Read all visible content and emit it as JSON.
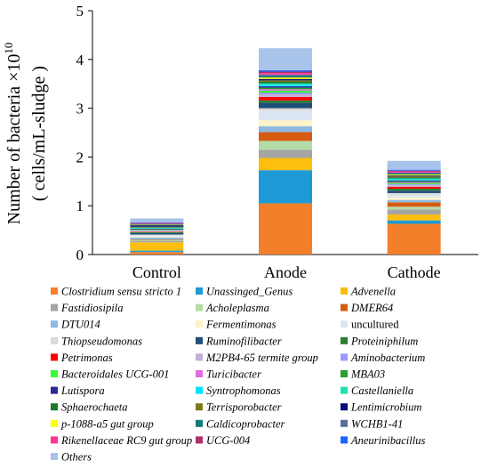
{
  "chart_data": {
    "type": "bar",
    "stacked": true,
    "ylabel": "Number of bacteria ×10",
    "ylabel_exponent": "10",
    "ylabel_unit": "( cells/mL-sludge )",
    "ylim": [
      0,
      5
    ],
    "y_ticks": [
      "0",
      "1",
      "2",
      "3",
      "4",
      "5"
    ],
    "grid": false,
    "legend_position": "bottom",
    "categories": [
      "Control",
      "Anode",
      "Cathode"
    ],
    "series": [
      {
        "name": "Clostridium sensu stricto 1",
        "color": "#f47f2a",
        "italic": true,
        "values": [
          0.05,
          1.05,
          0.63
        ]
      },
      {
        "name": "Unassinged_Genus",
        "color": "#1d9ad6",
        "italic": true,
        "values": [
          0.03,
          0.68,
          0.07
        ]
      },
      {
        "name": "Advenella",
        "color": "#fdbe0f",
        "italic": true,
        "values": [
          0.17,
          0.25,
          0.12
        ]
      },
      {
        "name": "Fastidiosipila",
        "color": "#a5a5a5",
        "italic": true,
        "values": [
          0.03,
          0.17,
          0.1
        ]
      },
      {
        "name": "Acholeplasma",
        "color": "#b3dba6",
        "italic": true,
        "values": [
          0.02,
          0.18,
          0.06
        ]
      },
      {
        "name": "DMER64",
        "color": "#d75c13",
        "italic": true,
        "values": [
          0.01,
          0.18,
          0.09
        ]
      },
      {
        "name": "DTU014",
        "color": "#8db9e3",
        "italic": true,
        "values": [
          0.04,
          0.12,
          0.05
        ]
      },
      {
        "name": "Fermentimonas",
        "color": "#fff2c6",
        "italic": true,
        "values": [
          0.02,
          0.12,
          0.05
        ]
      },
      {
        "name": "uncultured",
        "color": "#dce6f2",
        "italic": false,
        "values": [
          0.03,
          0.2,
          0.06
        ]
      },
      {
        "name": "Thiopseudomonas",
        "color": "#d9d9d9",
        "italic": true,
        "values": [
          0.01,
          0.05,
          0.03
        ]
      },
      {
        "name": "Ruminofilibacter",
        "color": "#1f4e79",
        "italic": true,
        "values": [
          0.03,
          0.11,
          0.05
        ]
      },
      {
        "name": "Proteiniphilum",
        "color": "#2e7d32",
        "italic": true,
        "values": [
          0.02,
          0.05,
          0.04
        ]
      },
      {
        "name": "Petrimonas",
        "color": "#ff0000",
        "italic": true,
        "values": [
          0.01,
          0.07,
          0.04
        ]
      },
      {
        "name": "M2PB4-65 termite group",
        "color": "#c5b0d5",
        "italic": true,
        "values": [
          0.01,
          0.05,
          0.03
        ]
      },
      {
        "name": "Aminobacterium",
        "color": "#9999ff",
        "italic": true,
        "values": [
          0.01,
          0.04,
          0.02
        ]
      },
      {
        "name": "Bacteroidales UCG-001",
        "color": "#33ff33",
        "italic": true,
        "values": [
          0.01,
          0.04,
          0.02
        ]
      },
      {
        "name": "Turicibacter",
        "color": "#e06ee0",
        "italic": true,
        "values": [
          0.01,
          0.03,
          0.02
        ]
      },
      {
        "name": "MBA03",
        "color": "#2c9c2c",
        "italic": true,
        "values": [
          0.01,
          0.03,
          0.02
        ]
      },
      {
        "name": "Lutispora",
        "color": "#2a2a99",
        "italic": true,
        "values": [
          0.01,
          0.03,
          0.02
        ]
      },
      {
        "name": "Syntrophomonas",
        "color": "#00e5ff",
        "italic": true,
        "values": [
          0.01,
          0.03,
          0.02
        ]
      },
      {
        "name": "Castellaniella",
        "color": "#1fe0b0",
        "italic": true,
        "values": [
          0.01,
          0.03,
          0.02
        ]
      },
      {
        "name": "Sphaerochaeta",
        "color": "#1a7a2a",
        "italic": true,
        "values": [
          0.01,
          0.03,
          0.02
        ]
      },
      {
        "name": "Terrisporobacter",
        "color": "#7a7a1a",
        "italic": true,
        "values": [
          0.01,
          0.03,
          0.02
        ]
      },
      {
        "name": "Lentimicrobium",
        "color": "#0a0a7a",
        "italic": true,
        "values": [
          0.03,
          0.03,
          0.02
        ]
      },
      {
        "name": "p-1088-a5 gut group",
        "color": "#ffff00",
        "italic": true,
        "values": [
          0.01,
          0.03,
          0.02
        ]
      },
      {
        "name": "Caldicoprobacter",
        "color": "#157a7a",
        "italic": true,
        "values": [
          0.01,
          0.03,
          0.02
        ]
      },
      {
        "name": "WCHB1-41",
        "color": "#5a6f99",
        "italic": true,
        "values": [
          0.01,
          0.03,
          0.02
        ]
      },
      {
        "name": "Rikenellaceae RC9 gut group",
        "color": "#ff3399",
        "italic": true,
        "values": [
          0.01,
          0.03,
          0.02
        ]
      },
      {
        "name": "UCG-004",
        "color": "#b0306a",
        "italic": true,
        "values": [
          0.01,
          0.03,
          0.02
        ]
      },
      {
        "name": "Aneurinibacillus",
        "color": "#1a66ff",
        "italic": true,
        "values": [
          0.01,
          0.03,
          0.02
        ]
      },
      {
        "name": "Others",
        "color": "#a9c4eb",
        "italic": true,
        "values": [
          0.08,
          0.45,
          0.18
        ]
      }
    ]
  }
}
